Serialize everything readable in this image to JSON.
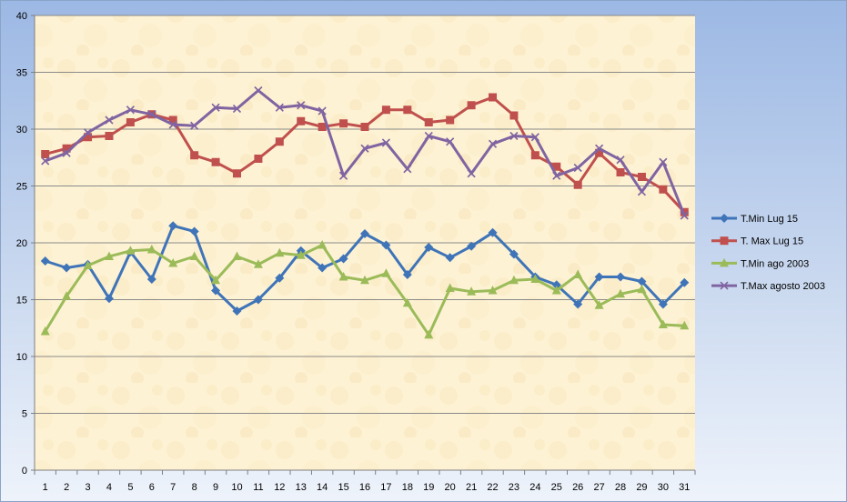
{
  "chart_data": {
    "type": "line",
    "categories": [
      "1",
      "2",
      "3",
      "4",
      "5",
      "6",
      "7",
      "8",
      "9",
      "10",
      "11",
      "12",
      "13",
      "14",
      "15",
      "16",
      "17",
      "18",
      "19",
      "20",
      "21",
      "22",
      "23",
      "24",
      "25",
      "26",
      "27",
      "28",
      "29",
      "30",
      "31"
    ],
    "ylim": [
      0,
      40
    ],
    "yticks": [
      0,
      5,
      10,
      15,
      20,
      25,
      30,
      35,
      40
    ],
    "grid": true,
    "legend": "right",
    "series": [
      {
        "name": "T.Min Lug 15",
        "color": "#3f74b8",
        "marker": "diamond",
        "values": [
          18.4,
          17.8,
          18.1,
          15.1,
          19.2,
          16.8,
          21.5,
          21.0,
          15.8,
          14.0,
          15.0,
          16.9,
          19.3,
          17.8,
          18.6,
          20.8,
          19.8,
          17.2,
          19.6,
          18.7,
          19.7,
          20.9,
          19.0,
          17.0,
          16.3,
          14.6,
          17.0,
          17.0,
          16.6,
          14.6,
          16.5
        ]
      },
      {
        "name": "T. Max Lug 15",
        "color": "#c0504d",
        "marker": "square",
        "values": [
          27.8,
          28.3,
          29.3,
          29.4,
          30.6,
          31.3,
          30.8,
          27.7,
          27.1,
          26.1,
          27.4,
          28.9,
          30.7,
          30.2,
          30.5,
          30.2,
          31.7,
          31.7,
          30.6,
          30.8,
          32.1,
          32.8,
          31.2,
          27.7,
          26.7,
          25.1,
          27.9,
          26.2,
          25.8,
          24.7,
          22.7
        ]
      },
      {
        "name": "T.Min ago 2003",
        "color": "#9bbb59",
        "marker": "triangle",
        "values": [
          12.2,
          15.3,
          18.0,
          18.8,
          19.3,
          19.4,
          18.2,
          18.8,
          16.7,
          18.8,
          18.1,
          19.1,
          18.9,
          19.8,
          17.0,
          16.7,
          17.3,
          14.7,
          11.9,
          16.0,
          15.7,
          15.8,
          16.7,
          16.8,
          15.8,
          17.2,
          14.5,
          15.5,
          15.9,
          12.8,
          12.7
        ]
      },
      {
        "name": "T.Max agosto  2003",
        "color": "#8064a2",
        "marker": "x",
        "values": [
          27.2,
          27.9,
          29.7,
          30.8,
          31.7,
          31.3,
          30.4,
          30.3,
          31.9,
          31.8,
          33.4,
          31.9,
          32.1,
          31.6,
          25.9,
          28.3,
          28.8,
          26.5,
          29.4,
          28.9,
          26.1,
          28.7,
          29.4,
          29.3,
          25.9,
          26.6,
          28.3,
          27.3,
          24.5,
          27.1,
          22.4
        ]
      }
    ]
  }
}
